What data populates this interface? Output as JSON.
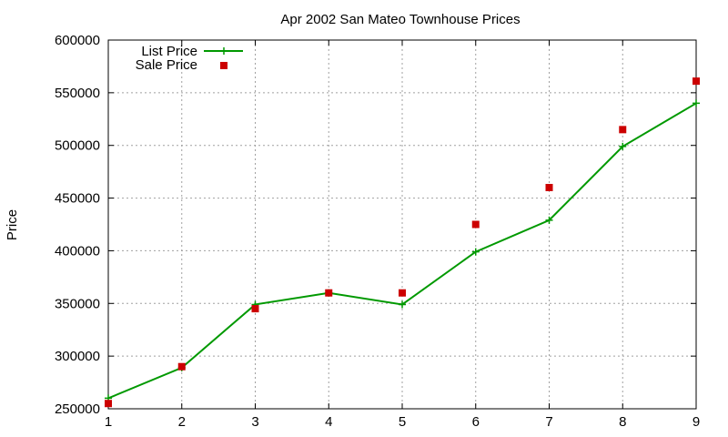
{
  "chart_data": {
    "type": "line",
    "title": "Apr 2002 San Mateo Townhouse Prices",
    "xlabel": "",
    "ylabel": "Price",
    "x": [
      1,
      2,
      3,
      4,
      5,
      6,
      7,
      8,
      9
    ],
    "xlim": [
      1,
      9
    ],
    "ylim": [
      250000,
      600000
    ],
    "xticks": [
      1,
      2,
      3,
      4,
      5,
      6,
      7,
      8,
      9
    ],
    "yticks": [
      250000,
      300000,
      350000,
      400000,
      450000,
      500000,
      550000,
      600000
    ],
    "grid": true,
    "legend_position": "top-left",
    "series": [
      {
        "name": "List Price",
        "style": "line-with-plus-markers",
        "color": "#009900",
        "values": [
          260000,
          289000,
          349000,
          360000,
          349000,
          399000,
          429000,
          499000,
          540000
        ]
      },
      {
        "name": "Sale Price",
        "style": "square-markers",
        "color": "#cc0000",
        "values": [
          255000,
          290000,
          345000,
          360000,
          360000,
          425000,
          460000,
          515000,
          561000
        ]
      }
    ]
  }
}
